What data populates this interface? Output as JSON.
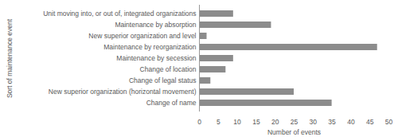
{
  "chart_data": {
    "type": "bar",
    "orientation": "horizontal",
    "x_label": "Number of events",
    "y_label": "Sort of maintenance event",
    "categories": [
      "Unit moving into, or out of, integrated organizations",
      "Maintenance by absorption",
      "New superior organization and level",
      "Maintenance by reorganization",
      "Maintenance by secession",
      "Change of location",
      "Change of legal status",
      "New superior organization (horizontal movement)",
      "Change of name"
    ],
    "values": [
      9,
      19,
      2,
      47,
      9,
      7,
      3,
      25,
      35
    ],
    "color": "#8c8c8c",
    "xlim": [
      0,
      50
    ],
    "xticks": [
      0,
      5,
      10,
      15,
      20,
      25,
      30,
      35,
      40,
      45,
      50
    ],
    "grid": false
  }
}
